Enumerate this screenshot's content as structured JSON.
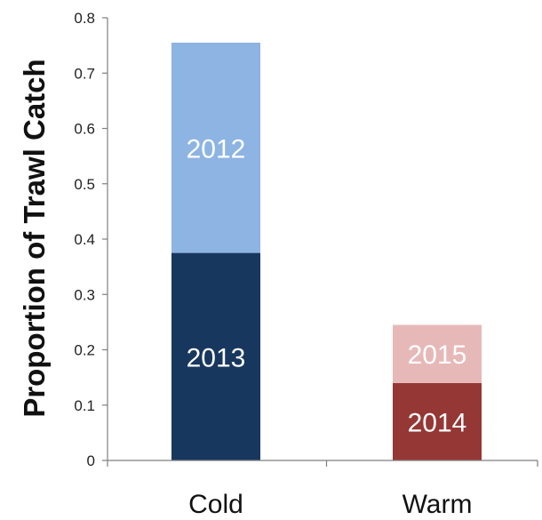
{
  "chart_data": {
    "type": "bar",
    "stacked": true,
    "title": "",
    "xlabel": "",
    "ylabel": "Proportion of Trawl Catch",
    "ylim": [
      0,
      0.8
    ],
    "yticks": [
      0,
      0.1,
      0.2,
      0.3,
      0.4,
      0.5,
      0.6,
      0.7,
      0.8
    ],
    "ytick_labels": [
      "0",
      "0.1",
      "0.2",
      "0.3",
      "0.4",
      "0.5",
      "0.6",
      "0.7",
      "0.8"
    ],
    "categories": [
      "Cold",
      "Warm"
    ],
    "grid": false,
    "legend": "none",
    "bars": [
      {
        "category": "Cold",
        "segments": [
          {
            "label": "2013",
            "value": 0.375,
            "color": "#17375e"
          },
          {
            "label": "2012",
            "value": 0.38,
            "color": "#8db4e2"
          }
        ]
      },
      {
        "category": "Warm",
        "segments": [
          {
            "label": "2014",
            "value": 0.14,
            "color": "#953735"
          },
          {
            "label": "2015",
            "value": 0.105,
            "color": "#e6b9b8"
          }
        ]
      }
    ]
  }
}
